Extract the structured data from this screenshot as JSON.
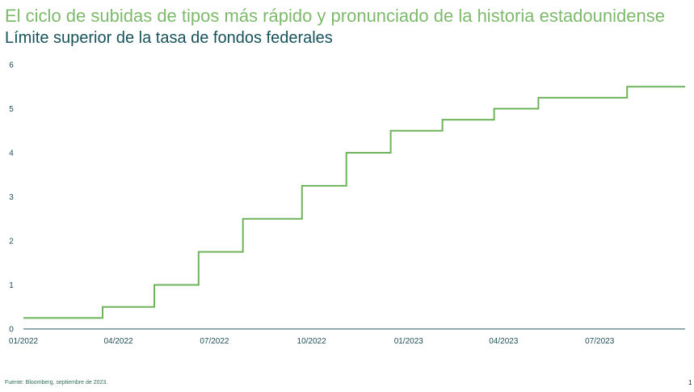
{
  "header": {
    "title": "El ciclo de subidas de tipos más rápido y pronunciado de la historia estadounidense",
    "subtitle": "Límite superior de la tasa de fondos federales"
  },
  "footer": {
    "source": "Fuente: Bloomberg, septiembre de 2023.",
    "page_number": "1"
  },
  "colors": {
    "title": "#7dba6b",
    "subtitle": "#17525a",
    "line": "#6db35a",
    "axis": "#1f5a5e"
  },
  "chart_data": {
    "type": "line",
    "step": true,
    "title": "Límite superior de la tasa de fondos federales",
    "xlabel": "",
    "ylabel": "",
    "xlim": [
      "2022-01-01",
      "2023-09-20"
    ],
    "ylim": [
      0,
      6
    ],
    "yticks": [
      0,
      1,
      2,
      3,
      4,
      5,
      6
    ],
    "xticks": [
      {
        "date": "2022-01-01",
        "label": "01/2022"
      },
      {
        "date": "2022-04-01",
        "label": "04/2022"
      },
      {
        "date": "2022-07-01",
        "label": "07/2022"
      },
      {
        "date": "2022-10-01",
        "label": "10/2022"
      },
      {
        "date": "2023-01-01",
        "label": "01/2023"
      },
      {
        "date": "2023-04-01",
        "label": "04/2023"
      },
      {
        "date": "2023-07-01",
        "label": "07/2023"
      }
    ],
    "grid": false,
    "series": [
      {
        "points": [
          {
            "x": "2022-01-01",
            "y": 0.25
          },
          {
            "x": "2022-03-17",
            "y": 0.5
          },
          {
            "x": "2022-05-05",
            "y": 1.0
          },
          {
            "x": "2022-06-16",
            "y": 1.75
          },
          {
            "x": "2022-07-28",
            "y": 2.5
          },
          {
            "x": "2022-09-22",
            "y": 3.25
          },
          {
            "x": "2022-11-03",
            "y": 4.0
          },
          {
            "x": "2022-12-15",
            "y": 4.5
          },
          {
            "x": "2023-02-02",
            "y": 4.75
          },
          {
            "x": "2023-03-23",
            "y": 5.0
          },
          {
            "x": "2023-05-04",
            "y": 5.25
          },
          {
            "x": "2023-07-27",
            "y": 5.5
          },
          {
            "x": "2023-09-20",
            "y": 5.5
          }
        ]
      }
    ]
  }
}
